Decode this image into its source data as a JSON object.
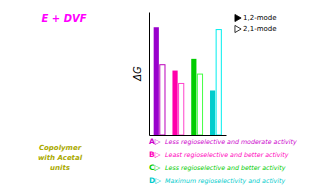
{
  "chart_data": {
    "type": "bar",
    "categories": [
      null,
      null,
      null,
      null
    ],
    "series": [
      {
        "name": "1,2-mode",
        "colors": [
          "#9900CC",
          "#FF00AA",
          "#00CC00",
          "#00CCCC"
        ],
        "values": [
          0.92,
          0.55,
          0.65,
          0.38
        ]
      },
      {
        "name": "2,1-mode",
        "colors": [
          "#BB00BB",
          "#FF44CC",
          "#44FF44",
          "#00EEEE"
        ],
        "values": [
          0.6,
          0.44,
          0.52,
          0.9
        ]
      }
    ],
    "y_label": "ΔG",
    "ylim": [
      0,
      1.05
    ],
    "tick_labels": false,
    "legend": "right",
    "annotations": [
      {
        "text": "E + DVF",
        "color": "#FF00FF"
      },
      {
        "text": "Copolymer\nwith Acetal\nunits",
        "color": "#AAAA00"
      },
      {
        "label": "A▷",
        "text": "Less regioselective and moderate activity",
        "color": "#CC00CC"
      },
      {
        "label": "B▷",
        "text": "Least regioselective and better activity",
        "color": "#FF00BB"
      },
      {
        "label": "C▷",
        "text": "Less regioselective and better activity",
        "color": "#00CC00"
      },
      {
        "label": "D▷",
        "text": "Maximum regioselectivity and activity",
        "color": "#00CCCC"
      }
    ]
  }
}
